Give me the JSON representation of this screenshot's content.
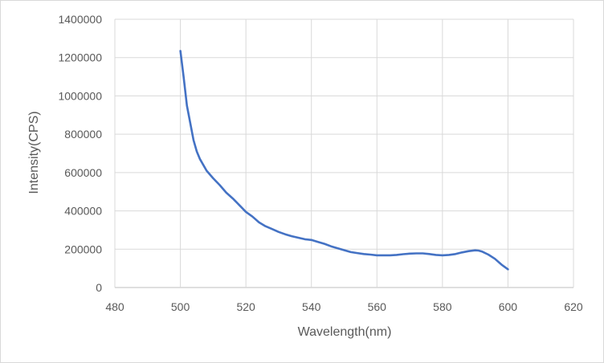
{
  "chart_data": {
    "type": "line",
    "title": "",
    "xlabel": "Wavelength(nm)",
    "ylabel": "Intensity(CPS)",
    "xlim": [
      480,
      620
    ],
    "ylim": [
      0,
      1400000
    ],
    "xticks": [
      480,
      500,
      520,
      540,
      560,
      580,
      600,
      620
    ],
    "yticks": [
      0,
      200000,
      400000,
      600000,
      800000,
      1000000,
      1200000,
      1400000
    ],
    "xtick_labels": [
      "480",
      "500",
      "520",
      "540",
      "560",
      "580",
      "600",
      "620"
    ],
    "ytick_labels": [
      "0",
      "200000",
      "400000",
      "600000",
      "800000",
      "1000000",
      "1200000",
      "1400000"
    ],
    "grid": true,
    "legend": "none",
    "series": [
      {
        "color": "#4472c4",
        "x": [
          500,
          501,
          502,
          503,
          504,
          505,
          506,
          508,
          510,
          512,
          514,
          516,
          518,
          520,
          522,
          524,
          526,
          528,
          530,
          532,
          534,
          536,
          538,
          540,
          542,
          544,
          546,
          548,
          550,
          552,
          554,
          556,
          558,
          560,
          562,
          564,
          566,
          568,
          570,
          572,
          574,
          576,
          578,
          580,
          582,
          584,
          586,
          588,
          590,
          591,
          592,
          594,
          596,
          598,
          600
        ],
        "y": [
          1235000,
          1100000,
          950000,
          860000,
          770000,
          710000,
          670000,
          610000,
          570000,
          535000,
          495000,
          465000,
          430000,
          395000,
          370000,
          340000,
          320000,
          305000,
          290000,
          278000,
          268000,
          260000,
          252000,
          248000,
          238000,
          228000,
          215000,
          205000,
          195000,
          185000,
          180000,
          175000,
          172000,
          168000,
          168000,
          168000,
          170000,
          174000,
          177000,
          178000,
          178000,
          175000,
          170000,
          168000,
          170000,
          175000,
          183000,
          190000,
          194000,
          193000,
          188000,
          172000,
          150000,
          120000,
          95000
        ]
      }
    ]
  }
}
